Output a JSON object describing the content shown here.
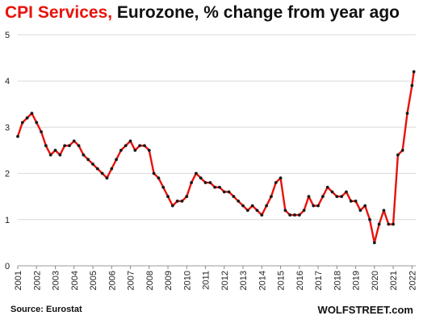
{
  "title": {
    "highlight": "CPI Services,",
    "rest": " Eurozone, % change from year ago"
  },
  "source": "Source: Eurostat",
  "brand": "WOLFSTREET.com",
  "colors": {
    "line": "#e8120c",
    "marker": "#1a1a1a",
    "grid": "#d9d9d9",
    "title_highlight": "#e8120c"
  },
  "chart_data": {
    "type": "line",
    "title": "CPI Services, Eurozone, % change from year ago",
    "xlabel": "",
    "ylabel": "",
    "xlim": [
      2001.0,
      2022.2
    ],
    "ylim": [
      0,
      5
    ],
    "yticks": [
      0,
      1,
      2,
      3,
      4,
      5
    ],
    "xtick_labels": [
      "2001",
      "2002",
      "2003",
      "2004",
      "2005",
      "2006",
      "2007",
      "2008",
      "2009",
      "2010",
      "2011",
      "2012",
      "2013",
      "2014",
      "2015",
      "2016",
      "2017",
      "2018",
      "2019",
      "2020",
      "2021",
      "2022"
    ],
    "grid": "horizontal",
    "series": [
      {
        "name": "",
        "x": [
          2001.0,
          2001.25,
          2001.5,
          2001.75,
          2002.0,
          2002.25,
          2002.5,
          2002.75,
          2003.0,
          2003.25,
          2003.5,
          2003.75,
          2004.0,
          2004.25,
          2004.5,
          2004.75,
          2005.0,
          2005.25,
          2005.5,
          2005.75,
          2006.0,
          2006.25,
          2006.5,
          2006.75,
          2007.0,
          2007.25,
          2007.5,
          2007.75,
          2008.0,
          2008.25,
          2008.5,
          2008.75,
          2009.0,
          2009.25,
          2009.5,
          2009.75,
          2010.0,
          2010.25,
          2010.5,
          2010.75,
          2011.0,
          2011.25,
          2011.5,
          2011.75,
          2012.0,
          2012.25,
          2012.5,
          2012.75,
          2013.0,
          2013.25,
          2013.5,
          2013.75,
          2014.0,
          2014.25,
          2014.5,
          2014.75,
          2015.0,
          2015.25,
          2015.5,
          2015.75,
          2016.0,
          2016.25,
          2016.5,
          2016.75,
          2017.0,
          2017.25,
          2017.5,
          2017.75,
          2018.0,
          2018.25,
          2018.5,
          2018.75,
          2019.0,
          2019.25,
          2019.5,
          2019.75,
          2020.0,
          2020.25,
          2020.5,
          2020.75,
          2021.0,
          2021.25,
          2021.5,
          2021.75,
          2022.0,
          2022.1
        ],
        "y": [
          2.8,
          3.1,
          3.2,
          3.3,
          3.1,
          2.9,
          2.6,
          2.4,
          2.5,
          2.4,
          2.6,
          2.6,
          2.7,
          2.6,
          2.4,
          2.3,
          2.2,
          2.1,
          2.0,
          1.9,
          2.1,
          2.3,
          2.5,
          2.6,
          2.7,
          2.5,
          2.6,
          2.6,
          2.5,
          2.0,
          1.9,
          1.7,
          1.5,
          1.3,
          1.4,
          1.4,
          1.5,
          1.8,
          2.0,
          1.9,
          1.8,
          1.8,
          1.7,
          1.7,
          1.6,
          1.6,
          1.5,
          1.4,
          1.3,
          1.2,
          1.3,
          1.2,
          1.1,
          1.3,
          1.5,
          1.8,
          1.9,
          1.2,
          1.1,
          1.1,
          1.1,
          1.2,
          1.5,
          1.3,
          1.3,
          1.5,
          1.7,
          1.6,
          1.5,
          1.5,
          1.6,
          1.4,
          1.4,
          1.2,
          1.3,
          1.0,
          0.5,
          0.9,
          1.2,
          0.9,
          0.9,
          2.4,
          2.5,
          3.3,
          3.9,
          4.2
        ]
      }
    ]
  }
}
